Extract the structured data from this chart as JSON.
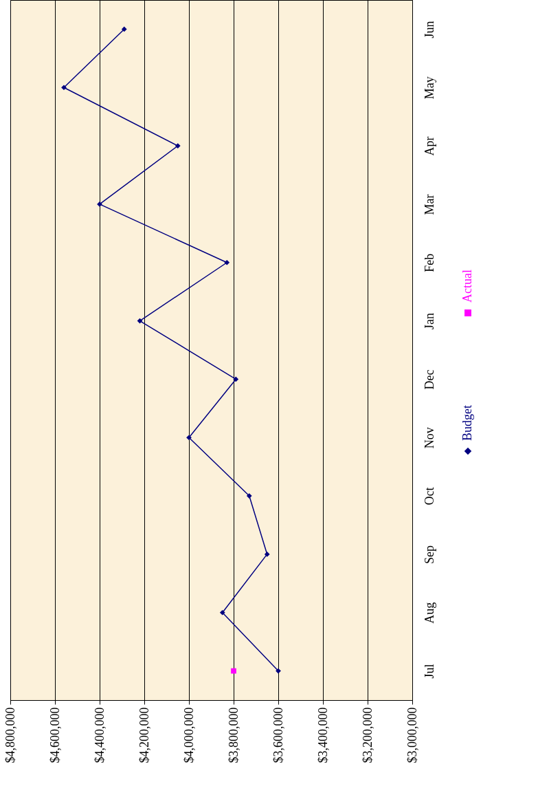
{
  "chart_data": {
    "type": "line",
    "orientation": "horizontal",
    "categories": [
      "Jun",
      "May",
      "Apr",
      "Mar",
      "Feb",
      "Jan",
      "Dec",
      "Nov",
      "Oct",
      "Sep",
      "Aug",
      "Jul"
    ],
    "series": [
      {
        "name": "Budget",
        "color": "#000080",
        "marker": "diamond",
        "values": [
          4290000,
          4560000,
          4050000,
          4400000,
          3830000,
          4220000,
          3790000,
          4000000,
          3730000,
          3650000,
          3850000,
          3600000
        ]
      },
      {
        "name": "Actual",
        "color": "#ff00ff",
        "marker": "square",
        "values": [
          null,
          null,
          null,
          null,
          null,
          null,
          null,
          null,
          null,
          null,
          null,
          3800000
        ]
      }
    ],
    "xlim": [
      4800000,
      3000000
    ],
    "xticks": [
      {
        "value": 4800000,
        "label": "$4,800,000"
      },
      {
        "value": 4600000,
        "label": "$4,600,000"
      },
      {
        "value": 4400000,
        "label": "$4,400,000"
      },
      {
        "value": 4200000,
        "label": "$4,200,000"
      },
      {
        "value": 4000000,
        "label": "$4,000,000"
      },
      {
        "value": 3800000,
        "label": "$3,800,000"
      },
      {
        "value": 3600000,
        "label": "$3,600,000"
      },
      {
        "value": 3400000,
        "label": "$3,400,000"
      },
      {
        "value": 3200000,
        "label": "$3,200,000"
      },
      {
        "value": 3000000,
        "label": "$3,000,000"
      }
    ],
    "grid": "x",
    "legend": "right"
  }
}
